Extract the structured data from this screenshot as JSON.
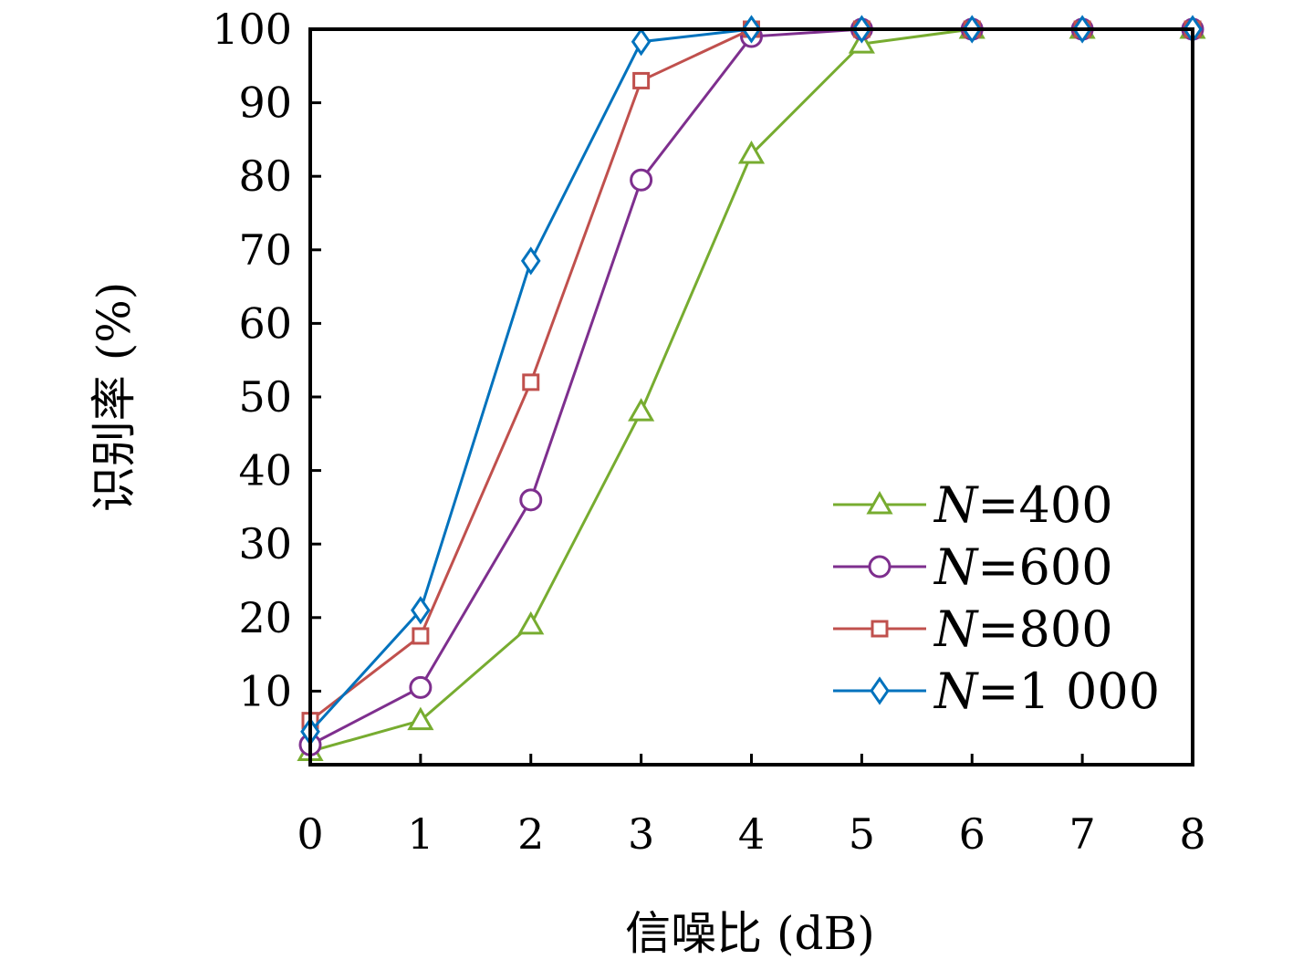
{
  "chart_data": {
    "type": "line",
    "xlabel": "信噪比 (dB)",
    "ylabel": "识别率 (%)",
    "xlim": [
      0,
      8
    ],
    "ylim": [
      0,
      100
    ],
    "x_ticks": [
      "0",
      "1",
      "2",
      "3",
      "4",
      "5",
      "6",
      "7",
      "8"
    ],
    "y_ticks": [
      "10",
      "20",
      "30",
      "40",
      "50",
      "60",
      "70",
      "80",
      "90",
      "100"
    ],
    "x": [
      0,
      1,
      2,
      3,
      4,
      5,
      6,
      7,
      8
    ],
    "legend_position": "bottom-right",
    "grid": false,
    "series": [
      {
        "name": "N=400",
        "var": "N",
        "value": "=400",
        "color": "#77ac30",
        "marker": "triangle",
        "values": [
          1.8,
          6.0,
          19.0,
          48.0,
          83.0,
          98.0,
          100,
          100,
          100
        ]
      },
      {
        "name": "N=600",
        "var": "N",
        "value": "=600",
        "color": "#7e2f8e",
        "marker": "circle",
        "values": [
          2.7,
          10.5,
          36.0,
          79.5,
          99.0,
          100,
          100,
          100,
          100
        ]
      },
      {
        "name": "N=800",
        "var": "N",
        "value": "=800",
        "color": "#c0504d",
        "marker": "square",
        "values": [
          6.0,
          17.5,
          52.0,
          93.0,
          100,
          100,
          100,
          100,
          100
        ]
      },
      {
        "name": "N=1 000",
        "var": "N",
        "value": "=1 000",
        "color": "#0072bd",
        "marker": "diamond",
        "values": [
          4.5,
          21.0,
          68.5,
          98.3,
          100,
          100,
          100,
          100,
          100
        ]
      }
    ]
  }
}
